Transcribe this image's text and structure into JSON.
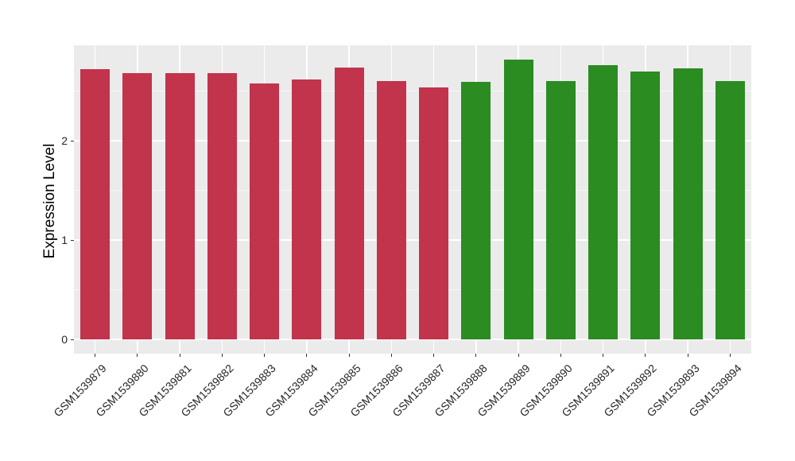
{
  "page": {
    "background": "#ffffff"
  },
  "chart_data": {
    "type": "bar",
    "title": "",
    "xlabel": "",
    "ylabel": "Expression Level",
    "categories": [
      "GSM1539879",
      "GSM1539880",
      "GSM1539881",
      "GSM1539882",
      "GSM1539883",
      "GSM1539884",
      "GSM1539885",
      "GSM1539886",
      "GSM1539887",
      "GSM1539888",
      "GSM1539889",
      "GSM1539890",
      "GSM1539891",
      "GSM1539892",
      "GSM1539893",
      "GSM1539894"
    ],
    "values": [
      2.72,
      2.68,
      2.68,
      2.68,
      2.58,
      2.62,
      2.74,
      2.6,
      2.54,
      2.59,
      2.82,
      2.6,
      2.76,
      2.7,
      2.73,
      2.6
    ],
    "bar_groups": [
      "A",
      "A",
      "A",
      "A",
      "A",
      "A",
      "A",
      "A",
      "A",
      "B",
      "B",
      "B",
      "B",
      "B",
      "B",
      "B"
    ],
    "group_colors": {
      "A": "#c2334c",
      "B": "#2a8c21"
    },
    "yticks": [
      0,
      1,
      2
    ],
    "ytick_labels": [
      "0",
      "1",
      "2"
    ],
    "yticks_minor": [
      0.5,
      1.5,
      2.5
    ],
    "ylim": [
      0,
      2.96
    ],
    "grid": true,
    "legend": "none",
    "panel_background": "#ebebeb",
    "gridline_color": "#ffffff",
    "axis_text_color": "#262626"
  }
}
